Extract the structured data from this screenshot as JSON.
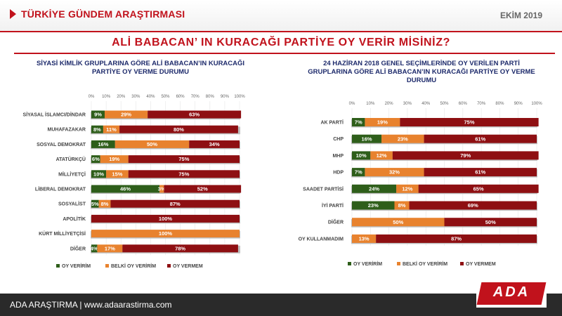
{
  "header": {
    "brand": "TÜRKİYE GÜNDEM ARAŞTIRMASI",
    "date": "EKİM 2019"
  },
  "main_title": "ALİ BABACAN’ IN KURACAĞI PARTİYE OY VERİR MİSİNİZ?",
  "footer": {
    "text": "ADA ARAŞTIRMA |   www.adaarastirma.com",
    "logo": "ADA"
  },
  "colors": {
    "yes": "#2e5e1a",
    "maybe": "#e8822e",
    "no": "#8e0f12",
    "accent": "#c1121c"
  },
  "chart_data": [
    {
      "type": "bar",
      "orientation": "horizontal",
      "stacked": true,
      "title": "SİYASİ KİMLİK GRUPLARINA GÖRE ALİ BABACAN’IN KURACAĞI PARTİYE OY VERME DURUMU",
      "xlim": [
        0,
        100
      ],
      "x_ticks": [
        "0%",
        "10%",
        "20%",
        "30%",
        "40%",
        "50%",
        "60%",
        "70%",
        "80%",
        "90%",
        "100%"
      ],
      "categories": [
        "SİYASAL İSLAMCI/DİNDAR",
        "MUHAFAZAKAR",
        "SOSYAL DEMOKRAT",
        "ATATÜRKÇÜ",
        "MİLLİYETÇİ",
        "LİBERAL DEMOKRAT",
        "SOSYALİST",
        "APOLİTİK",
        "KÜRT MİLLİYETÇİSİ",
        "DİĞER"
      ],
      "series": [
        {
          "name": "OY VERİRİM",
          "values": [
            9,
            8,
            16,
            6,
            10,
            46,
            5,
            0,
            0,
            4
          ]
        },
        {
          "name": "BELKİ OY VERİRİM",
          "values": [
            29,
            11,
            50,
            19,
            15,
            3,
            8,
            0,
            100,
            17
          ]
        },
        {
          "name": "OY VERMEM",
          "values": [
            63,
            80,
            34,
            75,
            75,
            52,
            87,
            100,
            0,
            78
          ]
        }
      ],
      "data_labels": [
        [
          "9%",
          "29%",
          "63%"
        ],
        [
          "8%",
          "11%",
          "80%"
        ],
        [
          "16%",
          "50%",
          "34%"
        ],
        [
          "6%",
          "19%",
          "75%"
        ],
        [
          "10%",
          "15%",
          "75%"
        ],
        [
          "46%",
          "3%",
          "52%"
        ],
        [
          "5%",
          "8%",
          "87%"
        ],
        [
          "",
          "",
          "100%"
        ],
        [
          "",
          "100%",
          ""
        ],
        [
          "4%",
          "17%",
          "78%"
        ]
      ],
      "legend_position": "bottom"
    },
    {
      "type": "bar",
      "orientation": "horizontal",
      "stacked": true,
      "title": "24 HAZİRAN 2018 GENEL SEÇİMLERİNDE OY VERİLEN PARTİ GRUPLARINA GÖRE ALİ BABACAN’IN KURACAĞI PARTİYE OY VERME DURUMU",
      "xlim": [
        0,
        100
      ],
      "x_ticks": [
        "0%",
        "10%",
        "20%",
        "30%",
        "40%",
        "50%",
        "60%",
        "70%",
        "80%",
        "90%",
        "100%"
      ],
      "categories": [
        "AK PARTİ",
        "CHP",
        "MHP",
        "HDP",
        "SAADET PARTİSİ",
        "İYİ PARTİ",
        "DİĞER",
        "OY KULLANMADIM"
      ],
      "series": [
        {
          "name": "OY VERİRİM",
          "values": [
            7,
            16,
            10,
            7,
            24,
            23,
            0,
            0
          ]
        },
        {
          "name": "BELKİ OY VERİRİM",
          "values": [
            19,
            23,
            12,
            32,
            12,
            8,
            50,
            13
          ]
        },
        {
          "name": "OY VERMEM",
          "values": [
            75,
            61,
            79,
            61,
            65,
            69,
            50,
            87
          ]
        }
      ],
      "data_labels": [
        [
          "7%",
          "19%",
          "75%"
        ],
        [
          "16%",
          "23%",
          "61%"
        ],
        [
          "10%",
          "12%",
          "79%"
        ],
        [
          "7%",
          "32%",
          "61%"
        ],
        [
          "24%",
          "12%",
          "65%"
        ],
        [
          "23%",
          "8%",
          "69%"
        ],
        [
          "",
          "50%",
          "50%"
        ],
        [
          "",
          "13%",
          "87%"
        ]
      ],
      "legend_position": "bottom"
    }
  ]
}
